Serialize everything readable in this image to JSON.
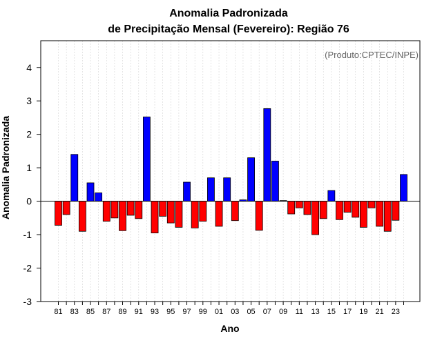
{
  "chart_data": {
    "type": "bar",
    "title": "Anomalia Padronizada",
    "subtitle": "de Precipitação Mensal (Fevereiro): Região 76",
    "xlabel": "Ano",
    "ylabel": "Anomalia Padronizada",
    "annotation": "(Produto:CPTEC/INPE)",
    "ylim": [
      -3,
      4.8
    ],
    "yticks": [
      -3,
      -2,
      -1,
      0,
      1,
      2,
      3,
      4
    ],
    "categories": [
      "81",
      "82",
      "83",
      "84",
      "85",
      "86",
      "87",
      "88",
      "89",
      "90",
      "91",
      "92",
      "93",
      "94",
      "95",
      "96",
      "97",
      "98",
      "99",
      "00",
      "01",
      "02",
      "03",
      "04",
      "05",
      "06",
      "07",
      "08",
      "09",
      "10",
      "11",
      "12",
      "13",
      "14",
      "15",
      "16",
      "17",
      "18",
      "19",
      "20",
      "21",
      "22",
      "23",
      "24"
    ],
    "tick_labels": [
      "81",
      "83",
      "85",
      "87",
      "89",
      "91",
      "93",
      "95",
      "97",
      "99",
      "01",
      "03",
      "05",
      "07",
      "09",
      "11",
      "13",
      "15",
      "17",
      "19",
      "21",
      "23"
    ],
    "values": [
      -0.72,
      -0.4,
      1.4,
      -0.9,
      0.55,
      0.25,
      -0.6,
      -0.5,
      -0.88,
      -0.42,
      -0.52,
      2.52,
      -0.95,
      -0.45,
      -0.65,
      -0.78,
      0.57,
      -0.8,
      -0.6,
      0.7,
      -0.75,
      0.7,
      -0.58,
      0.04,
      1.3,
      -0.87,
      2.77,
      1.2,
      0.02,
      -0.38,
      -0.2,
      -0.4,
      -1.0,
      -0.52,
      0.32,
      -0.55,
      -0.33,
      -0.48,
      -0.78,
      -0.2,
      -0.75,
      -0.9,
      -0.57,
      0.8
    ],
    "colors": {
      "positive": "#0000ff",
      "negative": "#ff0000",
      "zero_line": "#000000",
      "grid": "#d3d3d3"
    },
    "grid": true
  }
}
